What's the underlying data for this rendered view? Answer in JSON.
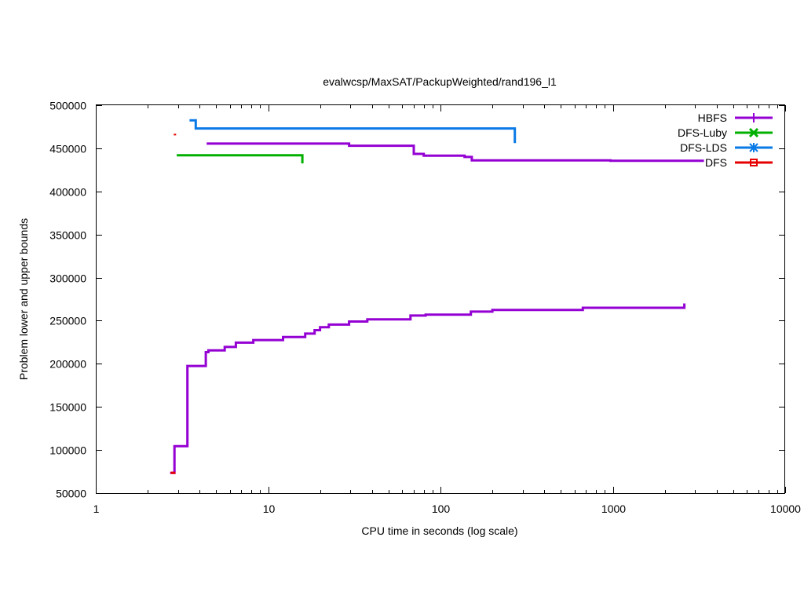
{
  "chart_data": {
    "type": "line",
    "title": "evalwcsp/MaxSAT/PackupWeighted/rand196_l1",
    "xlabel": "CPU time in seconds (log scale)",
    "ylabel": "Problem lower and upper bounds",
    "xscale": "log",
    "xlim": [
      1,
      10000
    ],
    "ylim": [
      50000,
      500000
    ],
    "x_ticks": [
      1,
      10,
      100,
      1000,
      10000
    ],
    "x_tick_labels": [
      "1",
      "10",
      "100",
      "1000",
      "10000"
    ],
    "y_ticks": [
      50000,
      100000,
      150000,
      200000,
      250000,
      300000,
      350000,
      400000,
      450000,
      500000
    ],
    "y_tick_labels": [
      "50000",
      "100000",
      "150000",
      "200000",
      "250000",
      "300000",
      "350000",
      "400000",
      "450000",
      "500000"
    ],
    "grid": false,
    "legend_position": "top-right",
    "series": [
      {
        "name": "HBFS",
        "color": "#9400d3",
        "marker": "plus",
        "curves": [
          [
            [
              4.4,
              455500
            ],
            [
              29.5,
              455500
            ],
            [
              29.5,
              453000
            ],
            [
              70,
              453000
            ],
            [
              70,
              443500
            ],
            [
              80,
              443500
            ],
            [
              80,
              441500
            ],
            [
              138,
              441500
            ],
            [
              138,
              440000
            ],
            [
              152,
              440000
            ],
            [
              152,
              436000
            ],
            [
              970,
              436000
            ],
            [
              970,
              435500
            ],
            [
              3380,
              435500
            ]
          ],
          [
            [
              2.7,
              73500
            ],
            [
              2.86,
              73500
            ],
            [
              2.86,
              104500
            ],
            [
              3.4,
              104500
            ],
            [
              3.4,
              197500
            ],
            [
              4.35,
              197500
            ],
            [
              4.35,
              213500
            ],
            [
              4.5,
              213500
            ],
            [
              4.5,
              215500
            ],
            [
              5.6,
              215500
            ],
            [
              5.6,
              219500
            ],
            [
              6.5,
              219500
            ],
            [
              6.5,
              224500
            ],
            [
              8.2,
              224500
            ],
            [
              8.2,
              227500
            ],
            [
              12.2,
              227500
            ],
            [
              12.2,
              231000
            ],
            [
              16.4,
              231000
            ],
            [
              16.4,
              235000
            ],
            [
              18.6,
              235000
            ],
            [
              18.6,
              239000
            ],
            [
              20,
              239000
            ],
            [
              20,
              242500
            ],
            [
              22.5,
              242500
            ],
            [
              22.5,
              245500
            ],
            [
              29.5,
              245500
            ],
            [
              29.5,
              249000
            ],
            [
              37.6,
              249000
            ],
            [
              37.6,
              251500
            ],
            [
              67,
              251500
            ],
            [
              67,
              256000
            ],
            [
              82,
              256000
            ],
            [
              82,
              257000
            ],
            [
              150,
              257000
            ],
            [
              150,
              260500
            ],
            [
              200,
              260500
            ],
            [
              200,
              262500
            ],
            [
              670,
              262500
            ],
            [
              670,
              265000
            ],
            [
              2600,
              265000
            ],
            [
              2600,
              270000
            ]
          ]
        ]
      },
      {
        "name": "DFS-Luby",
        "color": "#00b000",
        "marker": "cross",
        "curves": [
          [
            [
              2.95,
              442000
            ],
            [
              15.8,
              442000
            ],
            [
              15.8,
              432500
            ]
          ]
        ]
      },
      {
        "name": "DFS-LDS",
        "color": "#0a7ae6",
        "marker": "star",
        "curves": [
          [
            [
              3.5,
              482500
            ],
            [
              3.8,
              482500
            ],
            [
              3.8,
              473000
            ],
            [
              270,
              473000
            ],
            [
              270,
              456000
            ]
          ]
        ]
      },
      {
        "name": "DFS",
        "color": "#e60000",
        "marker": "square",
        "curves": [
          [
            [
              2.88,
              466800
            ],
            [
              2.88,
              465000
            ]
          ],
          [
            [
              2.72,
              73500
            ],
            [
              2.9,
              73500
            ]
          ]
        ]
      }
    ]
  }
}
